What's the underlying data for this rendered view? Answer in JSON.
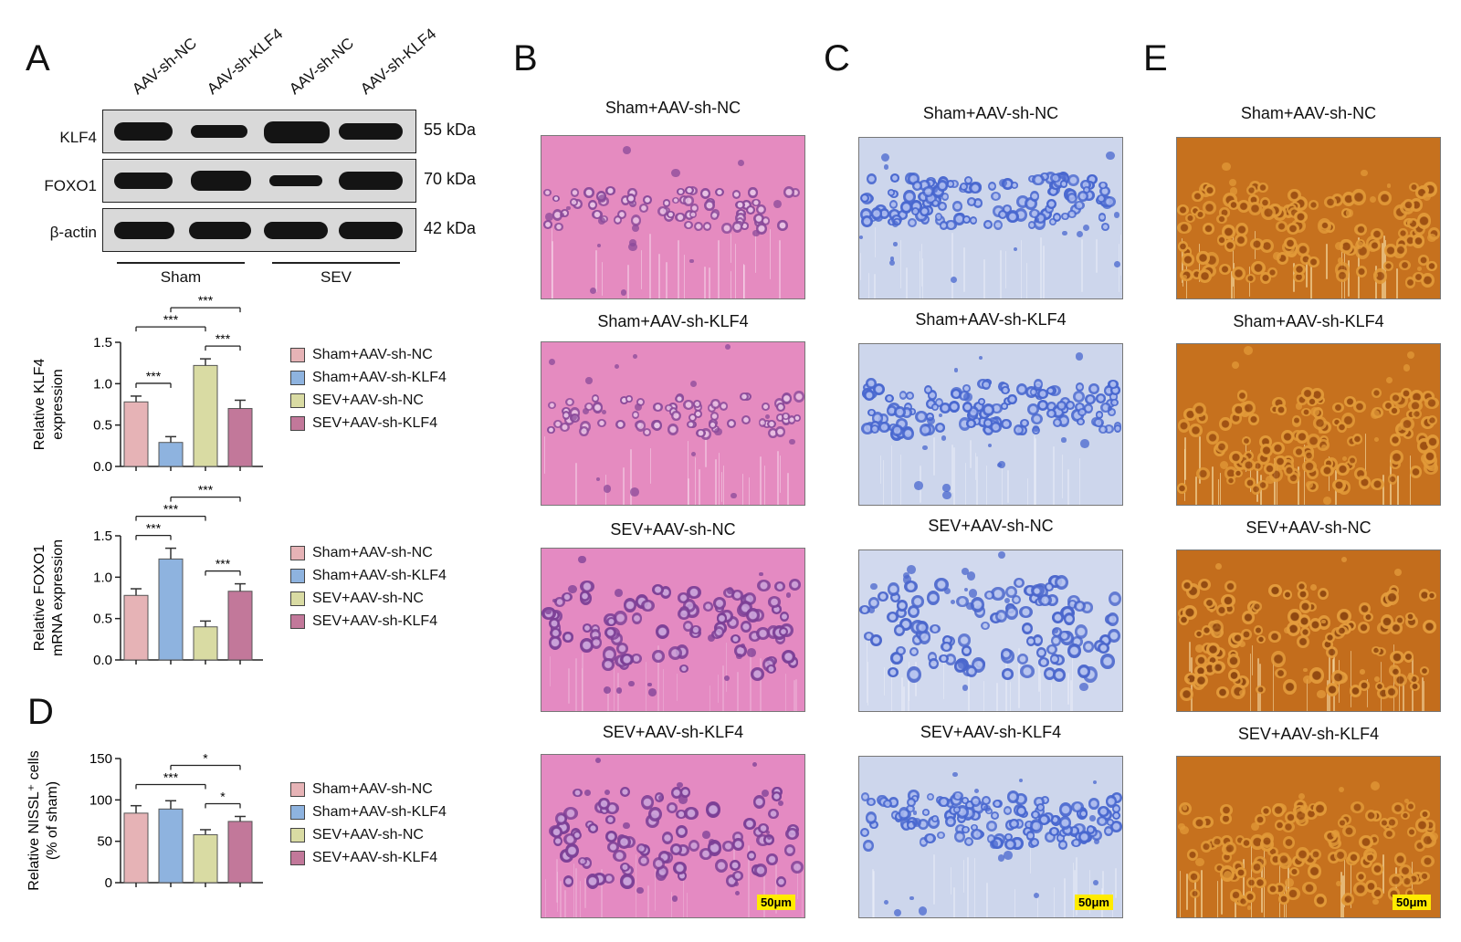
{
  "colors": {
    "sham_nc": "#e6b3b6",
    "sham_klf4": "#8eb3df",
    "sev_nc": "#d9dba3",
    "sev_klf4": "#c2789a",
    "he_bg": "#e27bb4",
    "nissl_bg": "#cfd7ea",
    "silver_bg": "#c8741e"
  },
  "panel_a": {
    "letter": "A",
    "lanes": [
      "AAV-sh-NC",
      "AAV-sh-KLF4",
      "AAV-sh-NC",
      "AAV-sh-KLF4"
    ],
    "blots": [
      {
        "name": "KLF4",
        "kda": "55 kDa"
      },
      {
        "name": "FOXO1",
        "kda": "70 kDa"
      },
      {
        "name": "β-actin",
        "kda": "42 kDa"
      }
    ],
    "groups": [
      "Sham",
      "SEV"
    ]
  },
  "legend": [
    "Sham+AAV-sh-NC",
    "Sham+AAV-sh-KLF4",
    "SEV+AAV-sh-NC",
    "SEV+AAV-sh-KLF4"
  ],
  "panel_d": {
    "letter": "D"
  },
  "panel_b": {
    "letter": "B",
    "titles": [
      "Sham+AAV-sh-NC",
      "Sham+AAV-sh-KLF4",
      "SEV+AAV-sh-NC",
      "SEV+AAV-sh-KLF4"
    ],
    "scale": "50μm"
  },
  "panel_c": {
    "letter": "C",
    "titles": [
      "Sham+AAV-sh-NC",
      "Sham+AAV-sh-KLF4",
      "SEV+AAV-sh-NC",
      "SEV+AAV-sh-KLF4"
    ],
    "scale": "50μm"
  },
  "panel_e": {
    "letter": "E",
    "titles": [
      "Sham+AAV-sh-NC",
      "Sham+AAV-sh-KLF4",
      "SEV+AAV-sh-NC",
      "SEV+AAV-sh-KLF4"
    ],
    "scale": "50μm"
  },
  "chart_data": [
    {
      "type": "bar",
      "ylabel": "Relative KLF4 expression",
      "ylabel_lines": [
        "Relative KLF4",
        "expression"
      ],
      "categories": [
        "Sham+AAV-sh-NC",
        "Sham+AAV-sh-KLF4",
        "SEV+AAV-sh-NC",
        "SEV+AAV-sh-KLF4"
      ],
      "values": [
        0.78,
        0.29,
        1.22,
        0.7
      ],
      "errors": [
        0.07,
        0.07,
        0.08,
        0.1
      ],
      "ylim": [
        0,
        1.5
      ],
      "yticks": [
        "0.0",
        "0.5",
        "1.0",
        "1.5"
      ],
      "significance": [
        {
          "from": 0,
          "to": 1,
          "label": "***"
        },
        {
          "from": 0,
          "to": 2,
          "label": "***"
        },
        {
          "from": 1,
          "to": 3,
          "label": "***"
        },
        {
          "from": 2,
          "to": 3,
          "label": "***"
        }
      ]
    },
    {
      "type": "bar",
      "ylabel": "Relative FOXO1 mRNA expression",
      "ylabel_lines": [
        "Relative FOXO1",
        "mRNA expression"
      ],
      "categories": [
        "Sham+AAV-sh-NC",
        "Sham+AAV-sh-KLF4",
        "SEV+AAV-sh-NC",
        "SEV+AAV-sh-KLF4"
      ],
      "values": [
        0.78,
        1.22,
        0.4,
        0.83
      ],
      "errors": [
        0.08,
        0.13,
        0.07,
        0.09
      ],
      "ylim": [
        0,
        1.5
      ],
      "yticks": [
        "0.0",
        "0.5",
        "1.0",
        "1.5"
      ],
      "significance": [
        {
          "from": 0,
          "to": 1,
          "label": "***"
        },
        {
          "from": 0,
          "to": 2,
          "label": "***"
        },
        {
          "from": 1,
          "to": 3,
          "label": "***"
        },
        {
          "from": 2,
          "to": 3,
          "label": "***"
        }
      ]
    },
    {
      "type": "bar",
      "ylabel": "Relative NISSL+ cells (% of sham)",
      "ylabel_lines": [
        "Relative NISSL⁺ cells",
        "(% of sham)"
      ],
      "categories": [
        "Sham+AAV-sh-NC",
        "Sham+AAV-sh-KLF4",
        "SEV+AAV-sh-NC",
        "SEV+AAV-sh-KLF4"
      ],
      "values": [
        84,
        89,
        58,
        74
      ],
      "errors": [
        9,
        10,
        6,
        6
      ],
      "ylim": [
        0,
        150
      ],
      "yticks": [
        "0",
        "50",
        "100",
        "150"
      ],
      "significance": [
        {
          "from": 0,
          "to": 2,
          "label": "***"
        },
        {
          "from": 1,
          "to": 3,
          "label": "*"
        },
        {
          "from": 2,
          "to": 3,
          "label": "*"
        }
      ]
    }
  ]
}
